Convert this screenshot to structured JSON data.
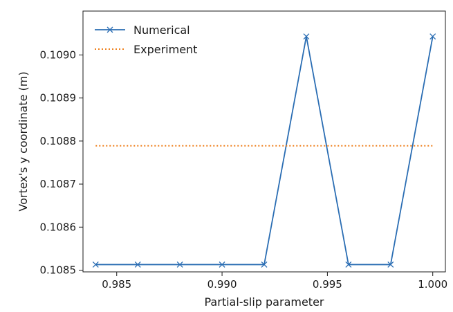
{
  "chart_data": {
    "type": "line",
    "xlabel": "Partial-slip parameter",
    "ylabel": "Vortex's y coordinate (m)",
    "xlim": [
      0.9834,
      1.0006
    ],
    "ylim": [
      0.108496,
      0.109102
    ],
    "grid": false,
    "legend_placement": "top-left",
    "x_ticks": [
      0.985,
      0.99,
      0.995,
      1.0
    ],
    "x_tick_labels": [
      "0.985",
      "0.990",
      "0.995",
      "1.000"
    ],
    "y_ticks": [
      0.1085,
      0.1086,
      0.1087,
      0.1088,
      0.1089,
      0.109
    ],
    "y_tick_labels": [
      "0.1085",
      "0.1086",
      "0.1087",
      "0.1088",
      "0.1089",
      "0.1090"
    ],
    "series": [
      {
        "name": "Numerical",
        "style": "solid",
        "marker": "x",
        "color": "#2a6db3",
        "x": [
          0.984,
          0.986,
          0.988,
          0.99,
          0.992,
          0.994,
          0.996,
          0.998,
          1.0
        ],
        "y": [
          0.108513,
          0.108513,
          0.108513,
          0.108513,
          0.108513,
          0.109043,
          0.108513,
          0.108513,
          0.109043
        ]
      },
      {
        "name": "Experiment",
        "style": "dotted",
        "color": "#ef7f1a",
        "x": [
          0.984,
          1.0
        ],
        "y": [
          0.108789,
          0.108789
        ]
      }
    ]
  }
}
